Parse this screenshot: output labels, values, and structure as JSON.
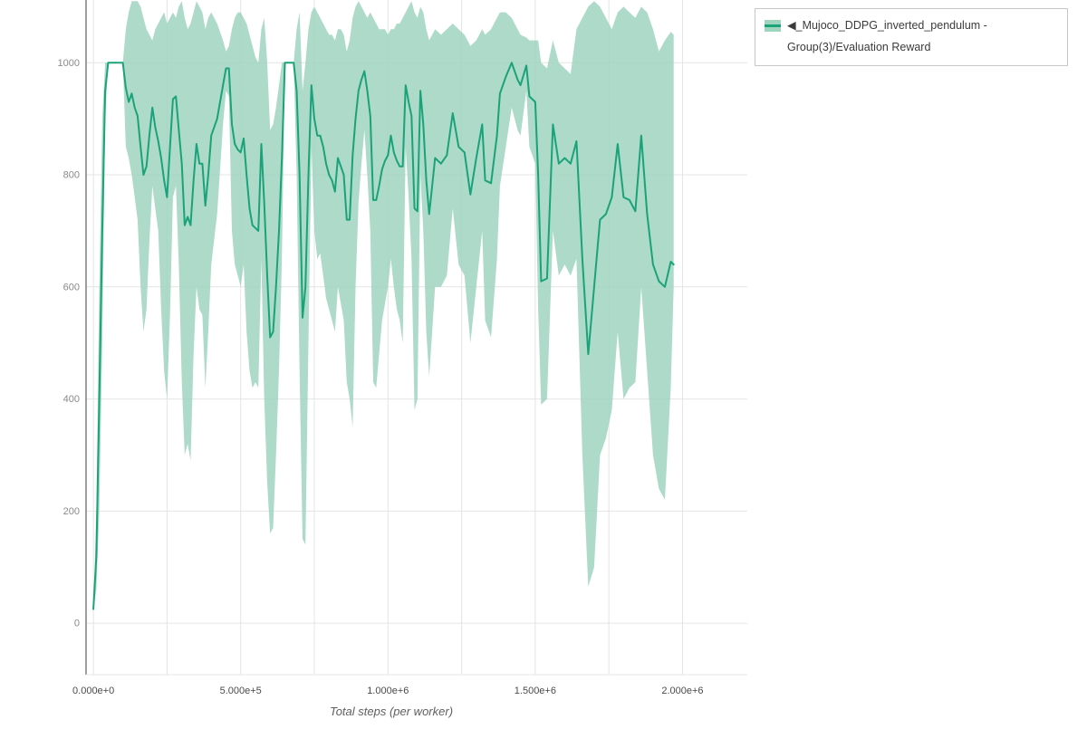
{
  "legend": {
    "label": "◀_Mujoco_DDPG_inverted_pendulum - Group(3)/Evaluation Reward"
  },
  "chart_data": {
    "type": "line",
    "title": "",
    "series_name": "◀_Mujoco_DDPG_inverted_pendulum - Group(3)/Evaluation Reward",
    "xlabel": "Total steps (per worker)",
    "ylabel": "",
    "xlim": [
      -25000,
      2220000
    ],
    "ylim": [
      -92,
      1112
    ],
    "grid": true,
    "legend_position": "top-right",
    "minor_x_step": 250000,
    "xticks": {
      "values": [
        0,
        500000,
        1000000,
        1500000,
        2000000
      ],
      "labels": [
        "0.000e+0",
        "5.000e+5",
        "1.000e+6",
        "1.500e+6",
        "2.000e+6"
      ]
    },
    "yticks": {
      "values": [
        0,
        200,
        400,
        600,
        800,
        1000
      ],
      "labels": [
        "0",
        "200",
        "400",
        "600",
        "800",
        "1000"
      ]
    },
    "colors": {
      "line": "#1aa378",
      "band": "#9fd4bf",
      "band_opacity": 0.85,
      "grid": "#e4e4e4",
      "spine": "#3f3f3f"
    },
    "points_format": [
      "total_steps",
      "mean_reward",
      "band_low",
      "band_high"
    ],
    "points": [
      [
        0,
        25,
        25,
        25
      ],
      [
        10000,
        120,
        60,
        200
      ],
      [
        20000,
        400,
        200,
        600
      ],
      [
        30000,
        700,
        500,
        900
      ],
      [
        40000,
        950,
        900,
        1000
      ],
      [
        50000,
        1000,
        1000,
        1000
      ],
      [
        100000,
        1000,
        1000,
        1000
      ],
      [
        110000,
        955,
        850,
        1060
      ],
      [
        120000,
        930,
        830,
        1090
      ],
      [
        130000,
        945,
        800,
        1110
      ],
      [
        140000,
        920,
        760,
        1110
      ],
      [
        150000,
        905,
        720,
        1110
      ],
      [
        160000,
        850,
        600,
        1100
      ],
      [
        170000,
        800,
        520,
        1080
      ],
      [
        180000,
        815,
        560,
        1060
      ],
      [
        190000,
        870,
        680,
        1050
      ],
      [
        200000,
        920,
        780,
        1040
      ],
      [
        210000,
        885,
        740,
        1060
      ],
      [
        220000,
        860,
        700,
        1070
      ],
      [
        230000,
        830,
        560,
        1080
      ],
      [
        240000,
        790,
        450,
        1090
      ],
      [
        250000,
        760,
        400,
        1070
      ],
      [
        260000,
        850,
        550,
        1080
      ],
      [
        270000,
        935,
        760,
        1090
      ],
      [
        280000,
        940,
        780,
        1080
      ],
      [
        290000,
        880,
        640,
        1100
      ],
      [
        300000,
        820,
        430,
        1110
      ],
      [
        310000,
        710,
        300,
        1080
      ],
      [
        320000,
        725,
        320,
        1060
      ],
      [
        330000,
        710,
        290,
        1070
      ],
      [
        340000,
        790,
        480,
        1090
      ],
      [
        350000,
        855,
        600,
        1110
      ],
      [
        360000,
        820,
        560,
        1100
      ],
      [
        370000,
        820,
        550,
        1090
      ],
      [
        380000,
        745,
        420,
        1060
      ],
      [
        390000,
        800,
        520,
        1080
      ],
      [
        400000,
        870,
        640,
        1090
      ],
      [
        420000,
        900,
        730,
        1070
      ],
      [
        440000,
        960,
        890,
        1040
      ],
      [
        450000,
        990,
        950,
        1020
      ],
      [
        460000,
        990,
        940,
        1030
      ],
      [
        470000,
        890,
        700,
        1060
      ],
      [
        480000,
        855,
        640,
        1080
      ],
      [
        490000,
        845,
        620,
        1090
      ],
      [
        500000,
        840,
        600,
        1090
      ],
      [
        510000,
        865,
        640,
        1080
      ],
      [
        520000,
        800,
        520,
        1070
      ],
      [
        530000,
        740,
        450,
        1050
      ],
      [
        540000,
        710,
        420,
        1030
      ],
      [
        550000,
        705,
        430,
        1010
      ],
      [
        560000,
        700,
        420,
        1000
      ],
      [
        570000,
        855,
        650,
        1060
      ],
      [
        580000,
        750,
        400,
        1080
      ],
      [
        590000,
        620,
        250,
        1000
      ],
      [
        600000,
        510,
        160,
        880
      ],
      [
        610000,
        520,
        170,
        890
      ],
      [
        620000,
        600,
        300,
        920
      ],
      [
        630000,
        700,
        450,
        960
      ],
      [
        640000,
        830,
        650,
        1000
      ],
      [
        650000,
        1000,
        1000,
        1000
      ],
      [
        680000,
        1000,
        1000,
        1000
      ],
      [
        690000,
        950,
        800,
        1060
      ],
      [
        700000,
        800,
        450,
        1090
      ],
      [
        710000,
        545,
        150,
        950
      ],
      [
        720000,
        600,
        140,
        1000
      ],
      [
        730000,
        800,
        500,
        1060
      ],
      [
        740000,
        960,
        850,
        1090
      ],
      [
        750000,
        900,
        700,
        1100
      ],
      [
        760000,
        870,
        650,
        1090
      ],
      [
        770000,
        870,
        660,
        1080
      ],
      [
        780000,
        850,
        620,
        1070
      ],
      [
        790000,
        820,
        580,
        1060
      ],
      [
        800000,
        800,
        560,
        1050
      ],
      [
        810000,
        790,
        540,
        1050
      ],
      [
        820000,
        770,
        520,
        1040
      ],
      [
        830000,
        830,
        600,
        1060
      ],
      [
        840000,
        815,
        570,
        1060
      ],
      [
        850000,
        800,
        540,
        1050
      ],
      [
        860000,
        720,
        430,
        1020
      ],
      [
        870000,
        720,
        400,
        1040
      ],
      [
        880000,
        835,
        350,
        1080
      ],
      [
        890000,
        900,
        600,
        1100
      ],
      [
        900000,
        950,
        750,
        1110
      ],
      [
        910000,
        970,
        820,
        1100
      ],
      [
        920000,
        985,
        880,
        1090
      ],
      [
        930000,
        950,
        800,
        1080
      ],
      [
        940000,
        905,
        700,
        1090
      ],
      [
        950000,
        755,
        430,
        1080
      ],
      [
        960000,
        755,
        420,
        1070
      ],
      [
        970000,
        780,
        480,
        1060
      ],
      [
        980000,
        810,
        540,
        1060
      ],
      [
        990000,
        825,
        570,
        1060
      ],
      [
        1000000,
        835,
        600,
        1050
      ],
      [
        1010000,
        870,
        650,
        1060
      ],
      [
        1020000,
        840,
        600,
        1060
      ],
      [
        1030000,
        825,
        560,
        1070
      ],
      [
        1040000,
        815,
        540,
        1070
      ],
      [
        1050000,
        815,
        500,
        1080
      ],
      [
        1060000,
        960,
        850,
        1090
      ],
      [
        1070000,
        930,
        760,
        1100
      ],
      [
        1080000,
        905,
        650,
        1110
      ],
      [
        1090000,
        740,
        380,
        1090
      ],
      [
        1100000,
        735,
        400,
        1080
      ],
      [
        1110000,
        950,
        800,
        1100
      ],
      [
        1120000,
        890,
        700,
        1090
      ],
      [
        1130000,
        790,
        520,
        1060
      ],
      [
        1140000,
        730,
        440,
        1040
      ],
      [
        1150000,
        780,
        520,
        1050
      ],
      [
        1160000,
        830,
        600,
        1060
      ],
      [
        1180000,
        820,
        600,
        1050
      ],
      [
        1200000,
        835,
        620,
        1060
      ],
      [
        1220000,
        910,
        740,
        1070
      ],
      [
        1240000,
        850,
        640,
        1060
      ],
      [
        1260000,
        840,
        620,
        1050
      ],
      [
        1280000,
        765,
        500,
        1030
      ],
      [
        1300000,
        830,
        600,
        1040
      ],
      [
        1320000,
        890,
        700,
        1060
      ],
      [
        1330000,
        790,
        540,
        1050
      ],
      [
        1350000,
        785,
        510,
        1060
      ],
      [
        1370000,
        870,
        650,
        1080
      ],
      [
        1380000,
        945,
        780,
        1090
      ],
      [
        1400000,
        975,
        850,
        1090
      ],
      [
        1420000,
        1000,
        920,
        1080
      ],
      [
        1440000,
        970,
        880,
        1060
      ],
      [
        1450000,
        960,
        870,
        1050
      ],
      [
        1470000,
        995,
        950,
        1045
      ],
      [
        1480000,
        940,
        850,
        1040
      ],
      [
        1500000,
        930,
        820,
        1040
      ],
      [
        1510000,
        800,
        560,
        1040
      ],
      [
        1520000,
        610,
        390,
        1000
      ],
      [
        1540000,
        615,
        400,
        990
      ],
      [
        1560000,
        890,
        700,
        1040
      ],
      [
        1580000,
        820,
        620,
        1000
      ],
      [
        1600000,
        830,
        640,
        990
      ],
      [
        1620000,
        820,
        620,
        980
      ],
      [
        1640000,
        860,
        650,
        1060
      ],
      [
        1660000,
        650,
        300,
        1080
      ],
      [
        1680000,
        480,
        65,
        1100
      ],
      [
        1700000,
        600,
        100,
        1110
      ],
      [
        1720000,
        720,
        300,
        1100
      ],
      [
        1740000,
        730,
        330,
        1080
      ],
      [
        1760000,
        760,
        380,
        1060
      ],
      [
        1780000,
        855,
        520,
        1090
      ],
      [
        1800000,
        760,
        400,
        1100
      ],
      [
        1820000,
        755,
        420,
        1090
      ],
      [
        1840000,
        735,
        430,
        1080
      ],
      [
        1860000,
        870,
        600,
        1100
      ],
      [
        1880000,
        730,
        450,
        1090
      ],
      [
        1900000,
        640,
        300,
        1060
      ],
      [
        1920000,
        610,
        240,
        1020
      ],
      [
        1940000,
        600,
        220,
        1040
      ],
      [
        1960000,
        645,
        420,
        1055
      ],
      [
        1970000,
        640,
        600,
        1050
      ]
    ]
  }
}
